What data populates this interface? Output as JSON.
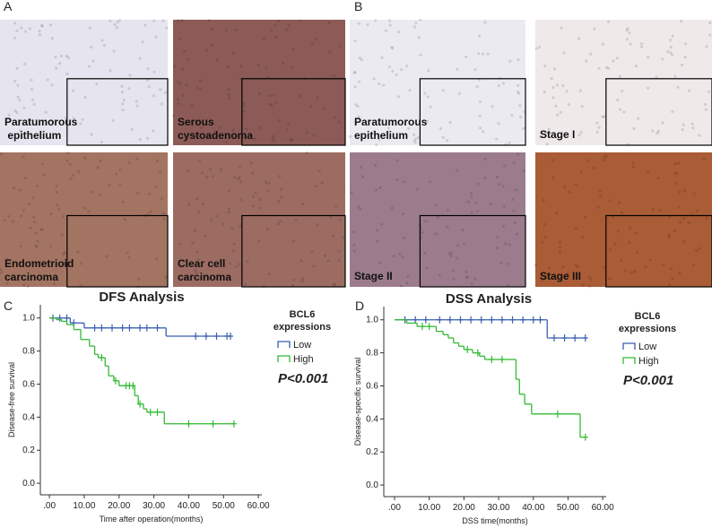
{
  "panel_labels": [
    "A",
    "B",
    "C",
    "D"
  ],
  "images": [
    {
      "caption": [
        "Paratumorous",
        " epithelium"
      ],
      "color": "#e6e4ee"
    },
    {
      "caption": [
        "Serous",
        "cystoadenoma"
      ],
      "color": "#8c5b57"
    },
    {
      "caption": [
        "Endometrioid",
        "carcinoma"
      ],
      "color": "#a47462"
    },
    {
      "caption": [
        "Clear cell",
        "carcinoma"
      ],
      "color": "#9c6c62"
    },
    {
      "caption": [
        "Paratumorous",
        "epithelium"
      ],
      "color": "#eceaf1"
    },
    {
      "caption": [
        "Stage I"
      ],
      "color": "#efe9ea"
    },
    {
      "caption": [
        "Stage II"
      ],
      "color": "#9c7c8c"
    },
    {
      "caption": [
        "Stage III"
      ],
      "color": "#a95c36"
    }
  ],
  "chart_data": [
    {
      "type": "km",
      "title": "DFS Analysis",
      "ylabel": "Disease-free survival",
      "xlabel": "Time after operation(months)",
      "legend_title": [
        "BCL6",
        "expressions"
      ],
      "annotation": "P<0.001",
      "xlim": [
        -2.6,
        61
      ],
      "ylim": [
        -0.07,
        1.08
      ],
      "xticks": [
        {
          "value": 0,
          "label": ".00"
        },
        {
          "value": 10,
          "label": "10.00"
        },
        {
          "value": 20,
          "label": "20.00"
        },
        {
          "value": 30,
          "label": "30.00"
        },
        {
          "value": 40,
          "label": "40.00"
        },
        {
          "value": 50,
          "label": "50.00"
        },
        {
          "value": 60,
          "label": "60.00"
        }
      ],
      "yticks": [
        {
          "value": 0,
          "label": "0.0"
        },
        0.2,
        0.4,
        0.6,
        0.8,
        {
          "value": 1,
          "label": "1.0"
        }
      ],
      "series": [
        {
          "name": "Low",
          "color": "#3a5fb0",
          "x": [
            0,
            6,
            10,
            33.5,
            52
          ],
          "values": [
            1,
            0.97,
            0.94,
            0.89,
            0.89
          ],
          "censored_x": [
            1,
            3,
            5,
            7,
            13,
            15,
            18,
            21,
            23,
            26,
            28,
            31,
            42,
            45,
            48,
            51,
            52
          ],
          "censored_y": [
            1,
            1,
            1,
            0.97,
            0.94,
            0.94,
            0.94,
            0.94,
            0.94,
            0.94,
            0.94,
            0.94,
            0.89,
            0.89,
            0.89,
            0.89,
            0.89
          ]
        },
        {
          "name": "High",
          "color": "#33bb33",
          "x": [
            0,
            2,
            3.5,
            5,
            7,
            9,
            11.5,
            13,
            14,
            16,
            17,
            18.5,
            20,
            24.5,
            25.5,
            27,
            28,
            33,
            53
          ],
          "values": [
            1,
            0.99,
            0.98,
            0.96,
            0.93,
            0.87,
            0.83,
            0.78,
            0.76,
            0.71,
            0.65,
            0.62,
            0.59,
            0.53,
            0.48,
            0.45,
            0.43,
            0.36,
            0.36
          ],
          "censored_x": [
            15,
            19,
            22,
            23,
            24,
            26,
            29,
            31,
            40,
            47,
            53
          ],
          "censored_y": [
            0.76,
            0.62,
            0.59,
            0.59,
            0.59,
            0.48,
            0.43,
            0.43,
            0.36,
            0.36,
            0.36
          ]
        }
      ]
    },
    {
      "type": "km",
      "title": "DSS Analysis",
      "ylabel": "Disease-specific survival",
      "xlabel": "DSS time(months)",
      "legend_title": [
        "BCL6",
        "expressions"
      ],
      "annotation": "P<0.001",
      "xlim": [
        -3.1,
        61
      ],
      "ylim": [
        -0.07,
        1.08
      ],
      "xticks": [
        {
          "value": 0,
          "label": ".00"
        },
        {
          "value": 10,
          "label": "10.00"
        },
        {
          "value": 20,
          "label": "20.00"
        },
        {
          "value": 30,
          "label": "30.00"
        },
        {
          "value": 40,
          "label": "40.00"
        },
        {
          "value": 50,
          "label": "50.00"
        },
        {
          "value": 60,
          "label": "60.00"
        }
      ],
      "yticks": [
        {
          "value": 0,
          "label": "0.0"
        },
        0.2,
        0.4,
        0.6,
        0.8,
        {
          "value": 1,
          "label": "1.0"
        }
      ],
      "series": [
        {
          "name": "Low",
          "color": "#3a5fb0",
          "x": [
            0,
            44,
            55
          ],
          "values": [
            1,
            0.89,
            0.89
          ],
          "censored_x": [
            3,
            6,
            9,
            13,
            16,
            19,
            22,
            25,
            28,
            31,
            34,
            37,
            40,
            42,
            46,
            49,
            52,
            55
          ],
          "censored_y": [
            1,
            1,
            1,
            1,
            1,
            1,
            1,
            1,
            1,
            1,
            1,
            1,
            1,
            1,
            0.89,
            0.89,
            0.89,
            0.89
          ]
        },
        {
          "name": "High",
          "color": "#33bb33",
          "x": [
            0,
            3.5,
            6.5,
            12,
            14,
            15.5,
            17,
            18.5,
            20,
            22.5,
            24.5,
            26,
            35,
            36,
            37.5,
            39.5,
            53.5,
            55
          ],
          "values": [
            1,
            0.98,
            0.96,
            0.93,
            0.91,
            0.89,
            0.86,
            0.84,
            0.82,
            0.8,
            0.78,
            0.76,
            0.64,
            0.55,
            0.49,
            0.43,
            0.29,
            0.29
          ],
          "censored_x": [
            8,
            10,
            21,
            24,
            28,
            31,
            47,
            55
          ],
          "censored_y": [
            0.96,
            0.96,
            0.82,
            0.8,
            0.76,
            0.76,
            0.43,
            0.29
          ]
        }
      ]
    }
  ]
}
